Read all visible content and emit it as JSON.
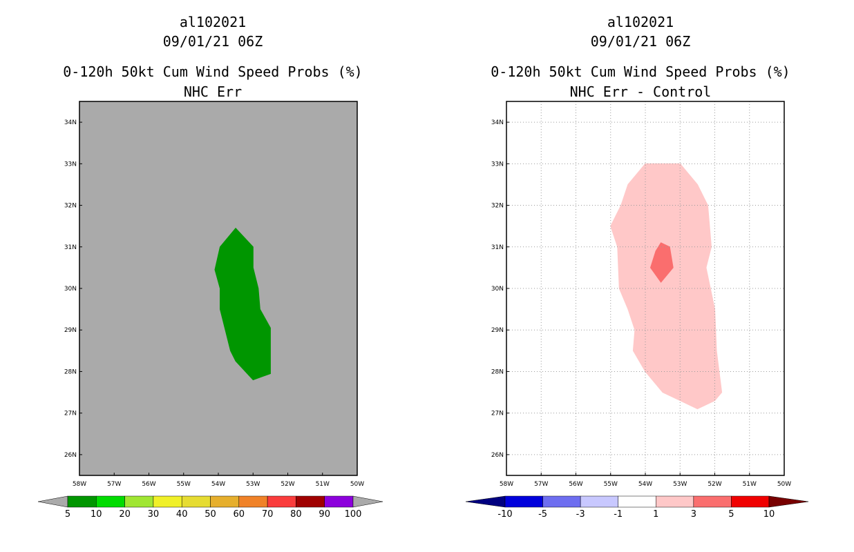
{
  "chart_data": [
    {
      "type": "map",
      "storm_id": "al102021",
      "datetime": "09/01/21 06Z",
      "title": "0-120h 50kt Cum Wind Speed Probs (%)",
      "subtitle": "NHC Err",
      "xlim": [
        -58,
        -50
      ],
      "ylim": [
        25.5,
        34.5
      ],
      "lon_ticks": [
        {
          "value": -58,
          "label": "58W"
        },
        {
          "value": -57,
          "label": "57W"
        },
        {
          "value": -56,
          "label": "56W"
        },
        {
          "value": -55,
          "label": "55W"
        },
        {
          "value": -54,
          "label": "54W"
        },
        {
          "value": -53,
          "label": "53W"
        },
        {
          "value": -52,
          "label": "52W"
        },
        {
          "value": -51,
          "label": "51W"
        },
        {
          "value": -50,
          "label": "50W"
        }
      ],
      "lat_ticks": [
        {
          "value": 26,
          "label": "26N"
        },
        {
          "value": 27,
          "label": "27N"
        },
        {
          "value": 28,
          "label": "28N"
        },
        {
          "value": 29,
          "label": "29N"
        },
        {
          "value": 30,
          "label": "30N"
        },
        {
          "value": 31,
          "label": "31N"
        },
        {
          "value": 32,
          "label": "32N"
        },
        {
          "value": 33,
          "label": "33N"
        },
        {
          "value": 34,
          "label": "34N"
        }
      ],
      "grid": false,
      "background_color": "#aaaaaa",
      "contours": [
        {
          "level": "5-10",
          "color": "#009600",
          "lonlat": [
            [
              -53.5,
              31.45
            ],
            [
              -53.95,
              31.0
            ],
            [
              -54.1,
              30.45
            ],
            [
              -53.95,
              30.0
            ],
            [
              -53.95,
              29.5
            ],
            [
              -53.65,
              28.5
            ],
            [
              -53.5,
              28.25
            ],
            [
              -53.0,
              27.8
            ],
            [
              -52.5,
              27.95
            ],
            [
              -52.5,
              29.05
            ],
            [
              -52.8,
              29.5
            ],
            [
              -52.85,
              30.0
            ],
            [
              -53.0,
              30.5
            ],
            [
              -53.0,
              31.0
            ]
          ]
        }
      ],
      "colorbar": {
        "labels": [
          "5",
          "10",
          "20",
          "30",
          "40",
          "50",
          "60",
          "70",
          "80",
          "90",
          "100"
        ],
        "colors": [
          "#009600",
          "#00dc00",
          "#a0e632",
          "#f0f028",
          "#e6dc32",
          "#e6af2d",
          "#f08228",
          "#fa3c3c",
          "#a00000",
          "#8c00dc"
        ],
        "under_color": "#aaaaaa",
        "over_color": "#aaaaaa"
      }
    },
    {
      "type": "map",
      "storm_id": "al102021",
      "datetime": "09/01/21 06Z",
      "title": "0-120h 50kt Cum Wind Speed Probs (%)",
      "subtitle": "NHC Err - Control",
      "xlim": [
        -58,
        -50
      ],
      "ylim": [
        25.5,
        34.5
      ],
      "lon_ticks": [
        {
          "value": -58,
          "label": "58W"
        },
        {
          "value": -57,
          "label": "57W"
        },
        {
          "value": -56,
          "label": "56W"
        },
        {
          "value": -55,
          "label": "55W"
        },
        {
          "value": -54,
          "label": "54W"
        },
        {
          "value": -53,
          "label": "53W"
        },
        {
          "value": -52,
          "label": "52W"
        },
        {
          "value": -51,
          "label": "51W"
        },
        {
          "value": -50,
          "label": "50W"
        }
      ],
      "lat_ticks": [
        {
          "value": 26,
          "label": "26N"
        },
        {
          "value": 27,
          "label": "27N"
        },
        {
          "value": 28,
          "label": "28N"
        },
        {
          "value": 29,
          "label": "29N"
        },
        {
          "value": 30,
          "label": "30N"
        },
        {
          "value": 31,
          "label": "31N"
        },
        {
          "value": 32,
          "label": "32N"
        },
        {
          "value": 33,
          "label": "33N"
        },
        {
          "value": 34,
          "label": "34N"
        }
      ],
      "grid": true,
      "background_color": "#ffffff",
      "contours": [
        {
          "level": "1-3",
          "color": "#ffc8c8",
          "lonlat": [
            [
              -54.0,
              33.0
            ],
            [
              -53.0,
              33.0
            ],
            [
              -52.5,
              32.5
            ],
            [
              -52.2,
              32.0
            ],
            [
              -52.1,
              31.0
            ],
            [
              -52.25,
              30.5
            ],
            [
              -52.0,
              29.5
            ],
            [
              -51.95,
              28.5
            ],
            [
              -51.8,
              27.5
            ],
            [
              -52.0,
              27.3
            ],
            [
              -52.5,
              27.1
            ],
            [
              -53.0,
              27.3
            ],
            [
              -53.5,
              27.5
            ],
            [
              -54.0,
              28.0
            ],
            [
              -54.35,
              28.5
            ],
            [
              -54.3,
              29.0
            ],
            [
              -54.5,
              29.5
            ],
            [
              -54.75,
              30.0
            ],
            [
              -54.8,
              31.0
            ],
            [
              -55.0,
              31.5
            ],
            [
              -54.7,
              32.0
            ],
            [
              -54.5,
              32.5
            ]
          ]
        },
        {
          "level": "3-5",
          "color": "#fa6e6e",
          "lonlat": [
            [
              -53.55,
              31.1
            ],
            [
              -53.3,
              31.0
            ],
            [
              -53.2,
              30.5
            ],
            [
              -53.55,
              30.15
            ],
            [
              -53.85,
              30.5
            ],
            [
              -53.7,
              30.9
            ]
          ]
        }
      ],
      "colorbar": {
        "labels": [
          "-10",
          "-5",
          "-3",
          "-1",
          "1",
          "3",
          "5",
          "10"
        ],
        "colors": [
          "#0000dc",
          "#6e6ef0",
          "#c8c8ff",
          "#ffffff",
          "#ffc8c8",
          "#fa6e6e",
          "#f00000"
        ],
        "under_color": "#000080",
        "over_color": "#780000"
      }
    }
  ]
}
